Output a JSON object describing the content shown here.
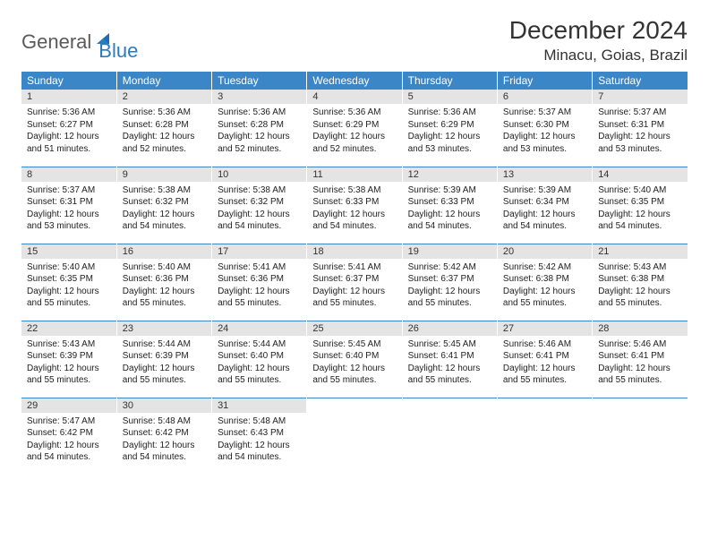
{
  "logo": {
    "text_general": "General",
    "text_blue": "Blue"
  },
  "title": "December 2024",
  "location": "Minacu, Goias, Brazil",
  "colors": {
    "header_bg": "#3b86c6",
    "header_fg": "#ffffff",
    "daynum_bg": "#e4e4e4",
    "row_border": "#3b86c6",
    "logo_gray": "#5a5a5a",
    "logo_blue": "#2b7bbf"
  },
  "weekdays": [
    "Sunday",
    "Monday",
    "Tuesday",
    "Wednesday",
    "Thursday",
    "Friday",
    "Saturday"
  ],
  "days": [
    {
      "n": 1,
      "sunrise": "5:36 AM",
      "sunset": "6:27 PM",
      "dl_h": 12,
      "dl_m": 51
    },
    {
      "n": 2,
      "sunrise": "5:36 AM",
      "sunset": "6:28 PM",
      "dl_h": 12,
      "dl_m": 52
    },
    {
      "n": 3,
      "sunrise": "5:36 AM",
      "sunset": "6:28 PM",
      "dl_h": 12,
      "dl_m": 52
    },
    {
      "n": 4,
      "sunrise": "5:36 AM",
      "sunset": "6:29 PM",
      "dl_h": 12,
      "dl_m": 52
    },
    {
      "n": 5,
      "sunrise": "5:36 AM",
      "sunset": "6:29 PM",
      "dl_h": 12,
      "dl_m": 53
    },
    {
      "n": 6,
      "sunrise": "5:37 AM",
      "sunset": "6:30 PM",
      "dl_h": 12,
      "dl_m": 53
    },
    {
      "n": 7,
      "sunrise": "5:37 AM",
      "sunset": "6:31 PM",
      "dl_h": 12,
      "dl_m": 53
    },
    {
      "n": 8,
      "sunrise": "5:37 AM",
      "sunset": "6:31 PM",
      "dl_h": 12,
      "dl_m": 53
    },
    {
      "n": 9,
      "sunrise": "5:38 AM",
      "sunset": "6:32 PM",
      "dl_h": 12,
      "dl_m": 54
    },
    {
      "n": 10,
      "sunrise": "5:38 AM",
      "sunset": "6:32 PM",
      "dl_h": 12,
      "dl_m": 54
    },
    {
      "n": 11,
      "sunrise": "5:38 AM",
      "sunset": "6:33 PM",
      "dl_h": 12,
      "dl_m": 54
    },
    {
      "n": 12,
      "sunrise": "5:39 AM",
      "sunset": "6:33 PM",
      "dl_h": 12,
      "dl_m": 54
    },
    {
      "n": 13,
      "sunrise": "5:39 AM",
      "sunset": "6:34 PM",
      "dl_h": 12,
      "dl_m": 54
    },
    {
      "n": 14,
      "sunrise": "5:40 AM",
      "sunset": "6:35 PM",
      "dl_h": 12,
      "dl_m": 54
    },
    {
      "n": 15,
      "sunrise": "5:40 AM",
      "sunset": "6:35 PM",
      "dl_h": 12,
      "dl_m": 55
    },
    {
      "n": 16,
      "sunrise": "5:40 AM",
      "sunset": "6:36 PM",
      "dl_h": 12,
      "dl_m": 55
    },
    {
      "n": 17,
      "sunrise": "5:41 AM",
      "sunset": "6:36 PM",
      "dl_h": 12,
      "dl_m": 55
    },
    {
      "n": 18,
      "sunrise": "5:41 AM",
      "sunset": "6:37 PM",
      "dl_h": 12,
      "dl_m": 55
    },
    {
      "n": 19,
      "sunrise": "5:42 AM",
      "sunset": "6:37 PM",
      "dl_h": 12,
      "dl_m": 55
    },
    {
      "n": 20,
      "sunrise": "5:42 AM",
      "sunset": "6:38 PM",
      "dl_h": 12,
      "dl_m": 55
    },
    {
      "n": 21,
      "sunrise": "5:43 AM",
      "sunset": "6:38 PM",
      "dl_h": 12,
      "dl_m": 55
    },
    {
      "n": 22,
      "sunrise": "5:43 AM",
      "sunset": "6:39 PM",
      "dl_h": 12,
      "dl_m": 55
    },
    {
      "n": 23,
      "sunrise": "5:44 AM",
      "sunset": "6:39 PM",
      "dl_h": 12,
      "dl_m": 55
    },
    {
      "n": 24,
      "sunrise": "5:44 AM",
      "sunset": "6:40 PM",
      "dl_h": 12,
      "dl_m": 55
    },
    {
      "n": 25,
      "sunrise": "5:45 AM",
      "sunset": "6:40 PM",
      "dl_h": 12,
      "dl_m": 55
    },
    {
      "n": 26,
      "sunrise": "5:45 AM",
      "sunset": "6:41 PM",
      "dl_h": 12,
      "dl_m": 55
    },
    {
      "n": 27,
      "sunrise": "5:46 AM",
      "sunset": "6:41 PM",
      "dl_h": 12,
      "dl_m": 55
    },
    {
      "n": 28,
      "sunrise": "5:46 AM",
      "sunset": "6:41 PM",
      "dl_h": 12,
      "dl_m": 55
    },
    {
      "n": 29,
      "sunrise": "5:47 AM",
      "sunset": "6:42 PM",
      "dl_h": 12,
      "dl_m": 54
    },
    {
      "n": 30,
      "sunrise": "5:48 AM",
      "sunset": "6:42 PM",
      "dl_h": 12,
      "dl_m": 54
    },
    {
      "n": 31,
      "sunrise": "5:48 AM",
      "sunset": "6:43 PM",
      "dl_h": 12,
      "dl_m": 54
    }
  ],
  "labels": {
    "sunrise": "Sunrise:",
    "sunset": "Sunset:",
    "daylight": "Daylight:",
    "hours": "hours",
    "and": "and",
    "minutes": "minutes."
  },
  "first_weekday_index": 0,
  "total_cells": 35
}
